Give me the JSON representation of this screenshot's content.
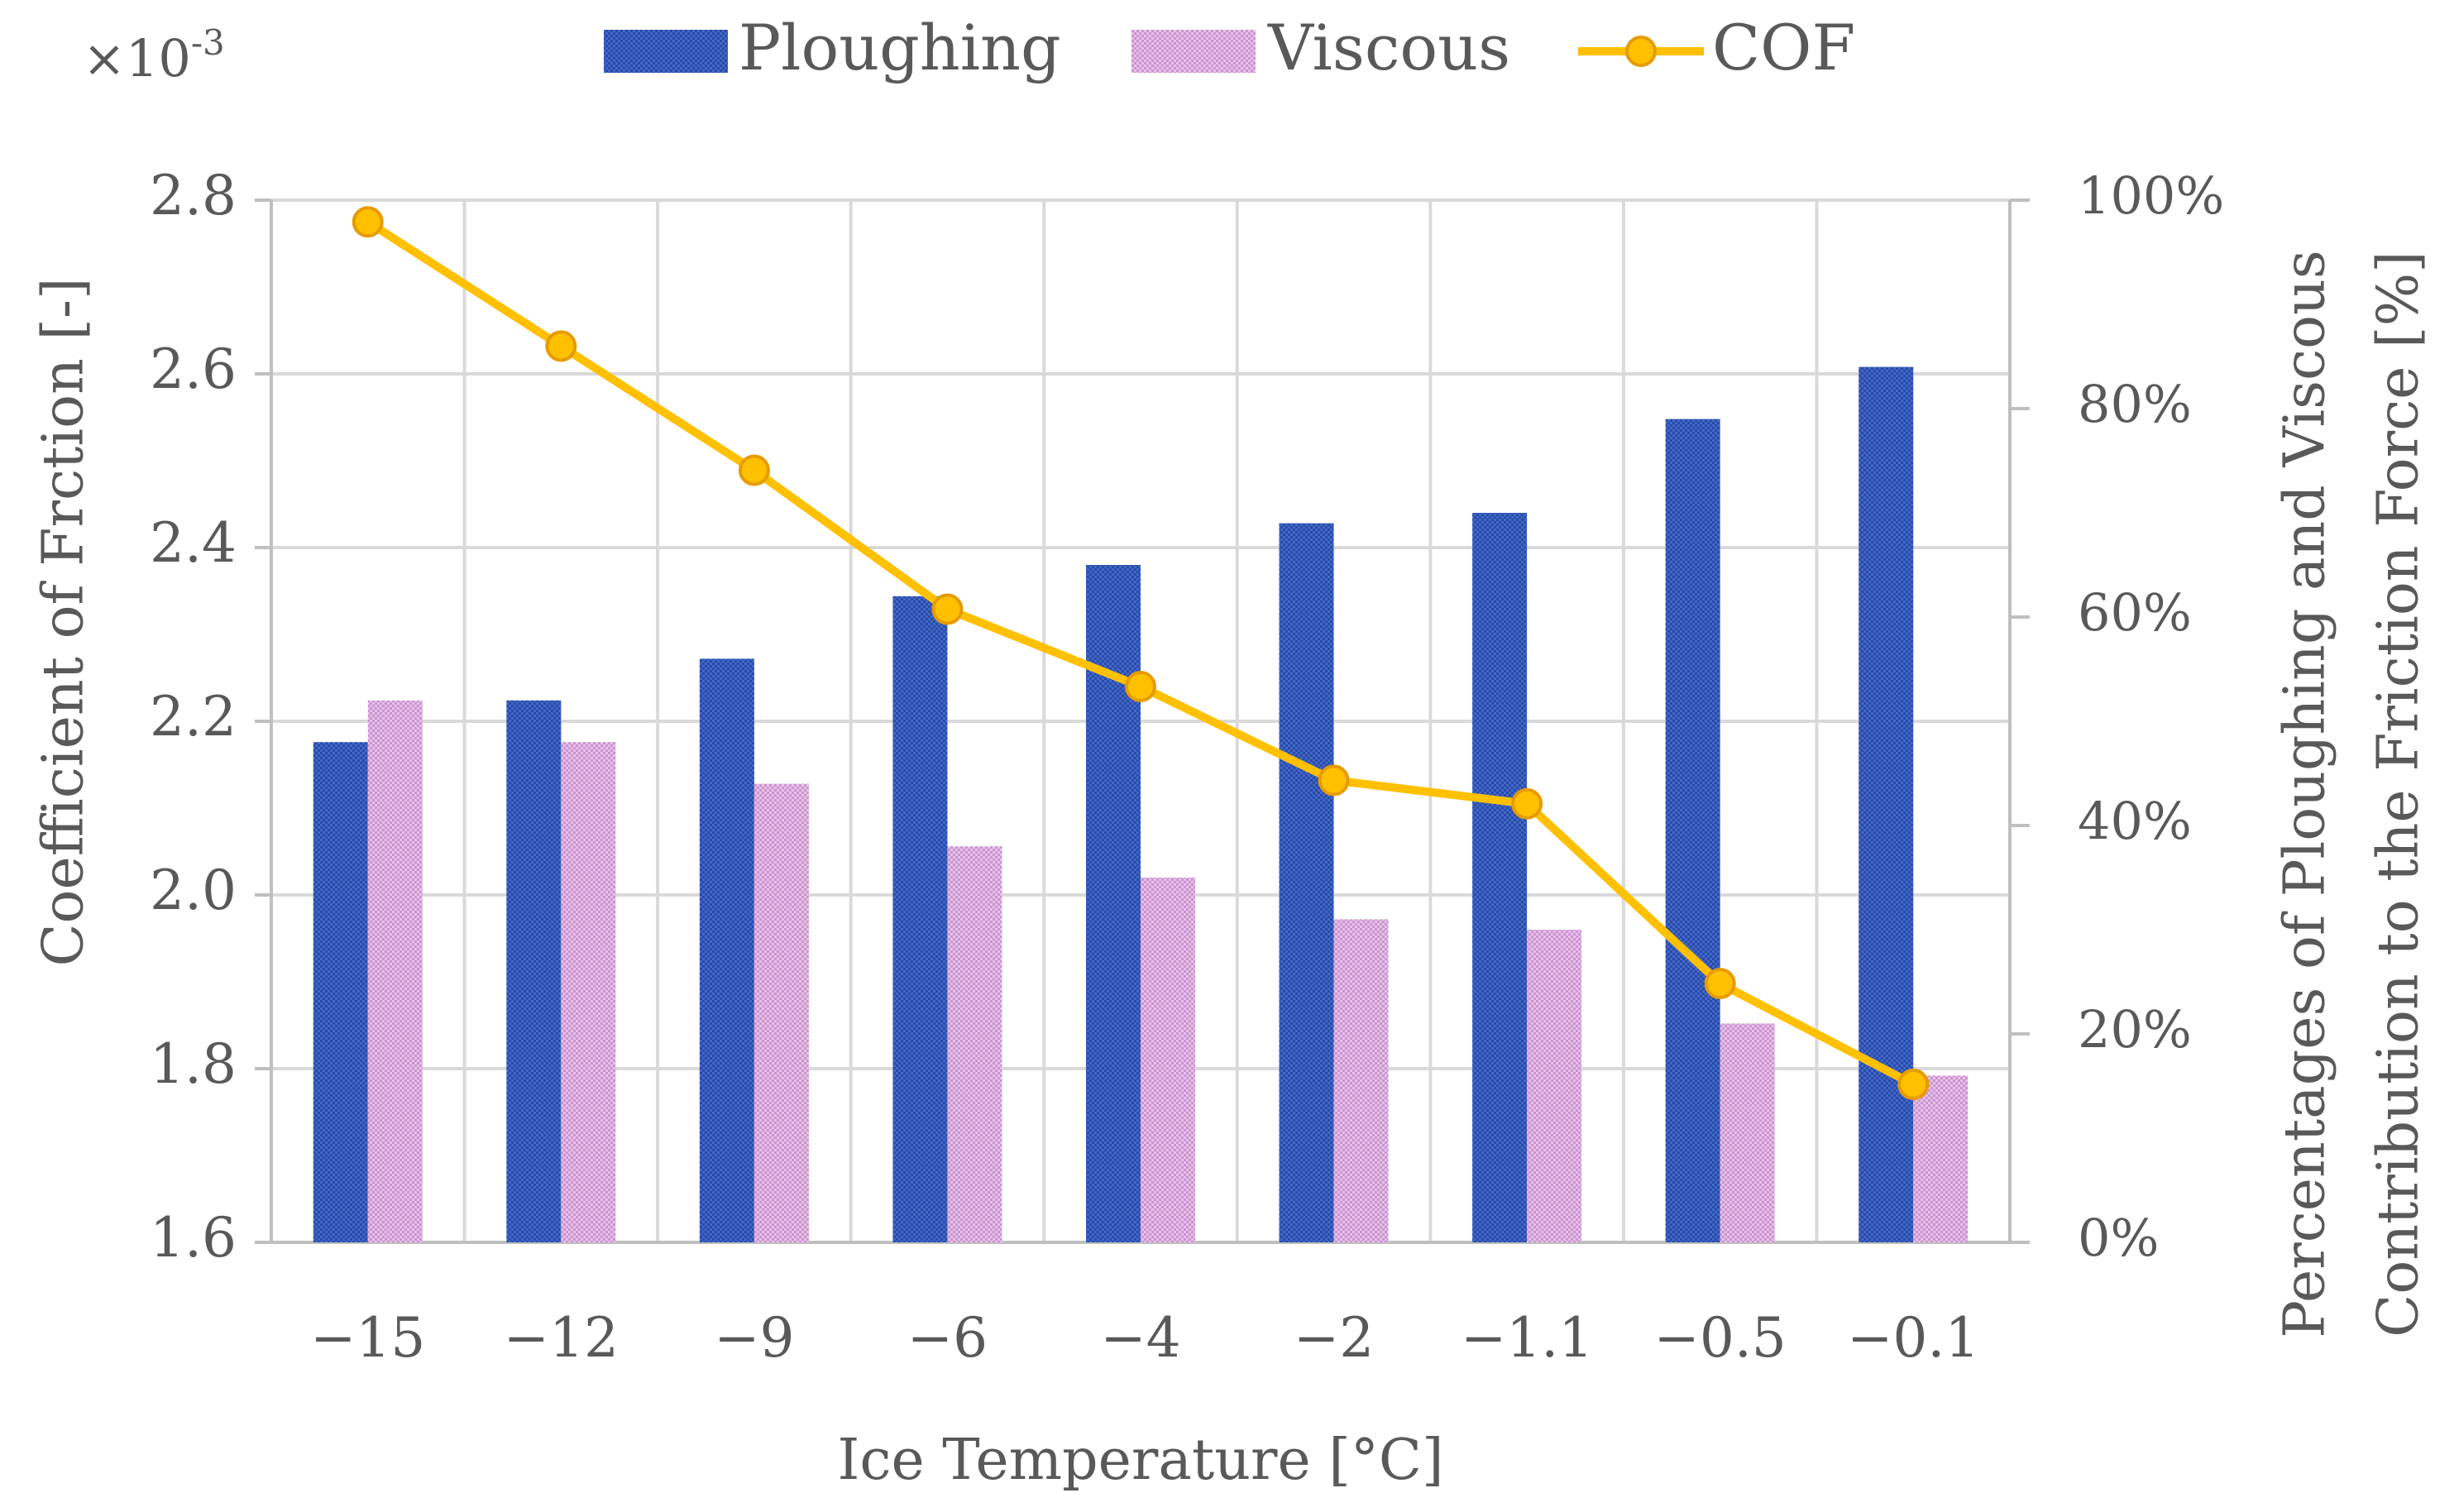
{
  "chart_data": {
    "type": "bar+line",
    "categories": [
      "−15",
      "−12",
      "−9",
      "−6",
      "−4",
      "−2",
      "−1.1",
      "−0.5",
      "−0.1"
    ],
    "series": [
      {
        "name": "Ploughing",
        "type": "bar",
        "axis": "right",
        "color": "#3a5fbd",
        "values": [
          48,
          52,
          56,
          62,
          65,
          69,
          70,
          79,
          84
        ]
      },
      {
        "name": "Viscous",
        "type": "bar",
        "axis": "right",
        "color": "#d9a7dc",
        "values": [
          52,
          48,
          44,
          38,
          35,
          31,
          30,
          21,
          16
        ]
      },
      {
        "name": "COF",
        "type": "line",
        "axis": "left",
        "color": "#ffc000",
        "marker_edge": "#e69b00",
        "values": [
          2.775,
          2.632,
          2.489,
          2.329,
          2.24,
          2.132,
          2.105,
          1.898,
          1.782
        ]
      }
    ],
    "left_axis": {
      "label": "Coefficient of Frction [-]",
      "scale_label": "×10",
      "scale_exponent": "-3",
      "ylim": [
        1.6,
        2.8
      ],
      "ticks": [
        "1.6",
        "1.8",
        "2.0",
        "2.2",
        "2.4",
        "2.6",
        "2.8"
      ]
    },
    "right_axis": {
      "label_line1": "Percentages of Ploughing and Viscous",
      "label_line2": "Contribution to the Friction Force [%]",
      "ylim": [
        0,
        100
      ],
      "ticks": [
        "0%",
        "20%",
        "40%",
        "60%",
        "80%",
        "100%"
      ]
    },
    "xlabel": "Ice Temperature [°C]",
    "grid": true,
    "legend_position": "top-center"
  }
}
